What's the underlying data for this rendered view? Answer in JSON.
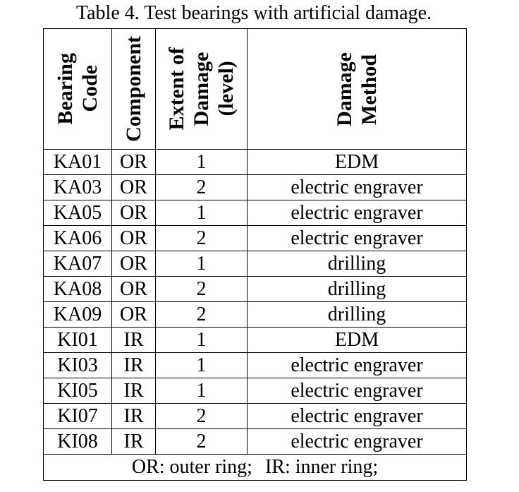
{
  "caption": "Table 4. Test bearings with artificial damage.",
  "headers": {
    "code": [
      "Bearing",
      "Code"
    ],
    "component": [
      "Component"
    ],
    "extent": [
      "Extent of",
      "Damage",
      "(level)"
    ],
    "method": [
      "Damage",
      "Method"
    ]
  },
  "rows": [
    {
      "code": "KA01",
      "component": "OR",
      "extent": "1",
      "method": "EDM"
    },
    {
      "code": "KA03",
      "component": "OR",
      "extent": "2",
      "method": "electric engraver"
    },
    {
      "code": "KA05",
      "component": "OR",
      "extent": "1",
      "method": "electric engraver"
    },
    {
      "code": "KA06",
      "component": "OR",
      "extent": "2",
      "method": "electric engraver"
    },
    {
      "code": "KA07",
      "component": "OR",
      "extent": "1",
      "method": "drilling"
    },
    {
      "code": "KA08",
      "component": "OR",
      "extent": "2",
      "method": "drilling"
    },
    {
      "code": "KA09",
      "component": "OR",
      "extent": "2",
      "method": "drilling"
    },
    {
      "code": "KI01",
      "component": "IR",
      "extent": "1",
      "method": "EDM"
    },
    {
      "code": "KI03",
      "component": "IR",
      "extent": "1",
      "method": "electric engraver"
    },
    {
      "code": "KI05",
      "component": "IR",
      "extent": "1",
      "method": "electric engraver"
    },
    {
      "code": "KI07",
      "component": "IR",
      "extent": "2",
      "method": "electric engraver"
    },
    {
      "code": "KI08",
      "component": "IR",
      "extent": "2",
      "method": "electric engraver"
    }
  ],
  "legend": {
    "outer": "OR: outer ring;",
    "inner": "IR: inner ring;"
  }
}
